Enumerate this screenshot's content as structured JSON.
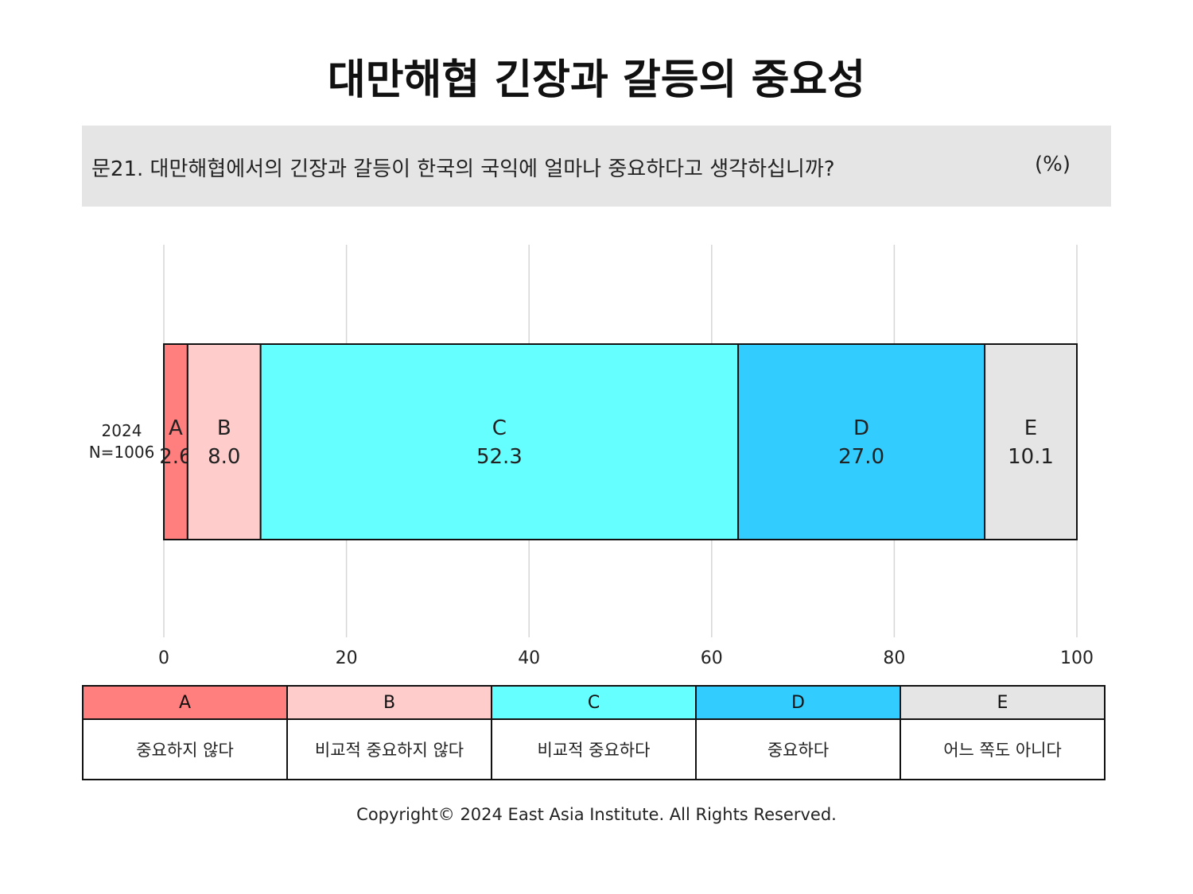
{
  "title": "대만해협 긴장과 갈등의 중요성",
  "question": {
    "text": "문21. 대만해협에서의 긴장과 갈등이 한국의 국익에 얼마나 중요하다고 생각하십니까?",
    "unit": "(%)"
  },
  "chart_data": {
    "type": "bar",
    "orientation": "horizontal",
    "stacked": true,
    "title": "대만해협 긴장과 갈등의 중요성",
    "categories": [
      {
        "label": "2024",
        "sublabel": "N=1006"
      }
    ],
    "series": [
      {
        "name": "A",
        "values": [
          2.6
        ],
        "color": "#ff7f7f"
      },
      {
        "name": "B",
        "values": [
          8.0
        ],
        "color": "#ffcccc"
      },
      {
        "name": "C",
        "values": [
          52.3
        ],
        "color": "#66ffff"
      },
      {
        "name": "D",
        "values": [
          27.0
        ],
        "color": "#33ccff"
      },
      {
        "name": "E",
        "values": [
          10.1
        ],
        "color": "#e6e5e6"
      }
    ],
    "xlim": [
      0,
      100
    ],
    "xticks": [
      0,
      20,
      40,
      60,
      80,
      100
    ],
    "grid": true
  },
  "legend": [
    {
      "key": "A",
      "label": "중요하지 않다",
      "color": "#ff7f7f"
    },
    {
      "key": "B",
      "label": "비교적 중요하지 않다",
      "color": "#ffcccc"
    },
    {
      "key": "C",
      "label": "비교적 중요하다",
      "color": "#66ffff"
    },
    {
      "key": "D",
      "label": "중요하다",
      "color": "#33ccff"
    },
    {
      "key": "E",
      "label": "어느 쪽도 아니다",
      "color": "#e6e5e6"
    }
  ],
  "copyright": "Copyright© 2024 East Asia Institute. All Rights Reserved."
}
